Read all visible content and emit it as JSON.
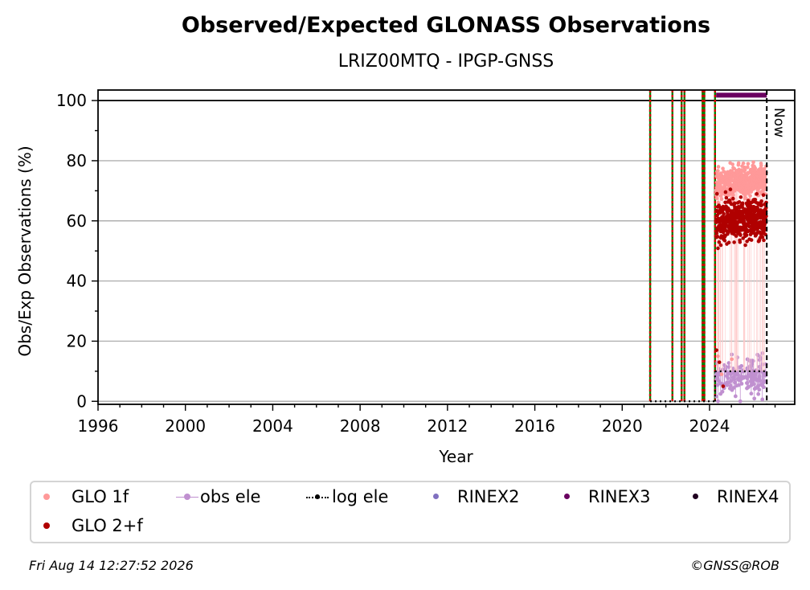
{
  "chart_data": {
    "type": "scatter",
    "title": "Observed/Expected GLONASS Observations",
    "subtitle": "LRIZ00MTQ - IPGP-GNSS",
    "xlabel": "Year",
    "ylabel": "Obs/Exp Observations (%)",
    "xlim": [
      1996,
      2027.9
    ],
    "ylim": [
      -1,
      103.5
    ],
    "x_ticks": [
      1996,
      2000,
      2004,
      2008,
      2012,
      2016,
      2020,
      2024
    ],
    "y_ticks": [
      0,
      20,
      40,
      60,
      80,
      100
    ],
    "grid": "horizontal",
    "reference_line": 100,
    "now_line": {
      "x": 2026.62,
      "label": "Now"
    },
    "event_lines": [
      2021.28,
      2022.3,
      2022.72,
      2022.85,
      2023.68,
      2023.76,
      2024.25
    ],
    "log_ele": {
      "segments": [
        [
          2021.28,
          2024.25,
          0
        ],
        [
          2024.25,
          2026.62,
          10
        ]
      ]
    },
    "rinex3": {
      "start": 2024.3,
      "end": 2026.62,
      "y": 101.8
    },
    "series": [
      {
        "name": "GLO 1f",
        "color": "#ff9999",
        "x_range": [
          2024.3,
          2026.6
        ],
        "y_mean": 72,
        "y_spread": 2.5,
        "y_trend": 2.0
      },
      {
        "name": "GLO 2+f",
        "color": "#b00000",
        "x_range": [
          2024.3,
          2026.6
        ],
        "y_mean": 60,
        "y_spread": 3.5,
        "y_trend": 0.5
      },
      {
        "name": "obs ele",
        "color": "#c090d0",
        "x_range": [
          2024.3,
          2026.6
        ],
        "y_mean": 8,
        "y_spread": 3,
        "y_trend": 0
      }
    ],
    "legend": {
      "placement": "bottom",
      "entries": [
        {
          "name": "GLO 1f",
          "color": "#ff9999",
          "marker": "dot"
        },
        {
          "name": "obs ele",
          "color": "#c090d0",
          "marker": "line-dot"
        },
        {
          "name": "log ele",
          "color": "#000000",
          "marker": "dotted-line"
        },
        {
          "name": "RINEX2",
          "color": "#8070c0",
          "marker": "dot"
        },
        {
          "name": "RINEX3",
          "color": "#6a0060",
          "marker": "dot"
        },
        {
          "name": "RINEX4",
          "color": "#200020",
          "marker": "dot"
        },
        {
          "name": "GLO 2+f",
          "color": "#b00000",
          "marker": "dot"
        }
      ]
    }
  },
  "footer": {
    "timestamp": "Fri Aug 14 12:27:52 2026",
    "credit": "©GNSS@ROB"
  }
}
